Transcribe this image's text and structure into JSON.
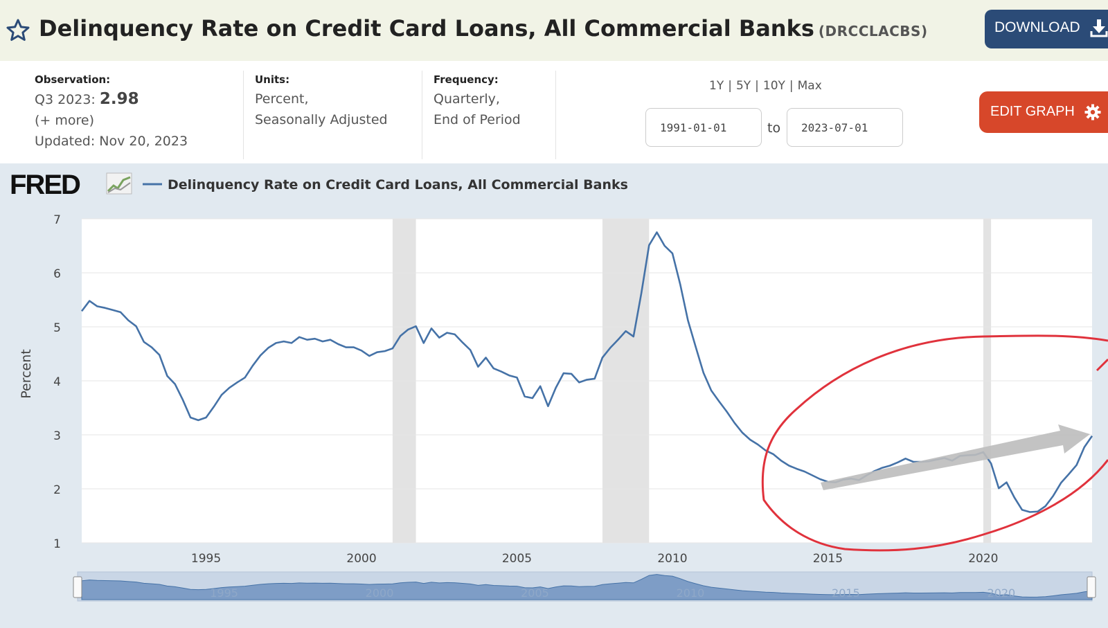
{
  "header": {
    "title": "Delinquency Rate on Credit Card Loans, All Commercial Banks",
    "series_id": "(DRCCLACBS)",
    "download_label": "DOWNLOAD",
    "star_icon": "star-outline-icon",
    "download_icon": "download-icon"
  },
  "meta": {
    "observation_label": "Observation:",
    "observation_period": "Q3 2023:",
    "observation_value": "2.98",
    "more_link": "(+ more)",
    "updated": "Updated: Nov 20, 2023",
    "units_label": "Units:",
    "units_line1": "Percent,",
    "units_line2": "Seasonally Adjusted",
    "frequency_label": "Frequency:",
    "frequency_line1": "Quarterly,",
    "frequency_line2": "End of Period"
  },
  "controls": {
    "ranges": [
      "1Y",
      "5Y",
      "10Y",
      "Max"
    ],
    "start_date": "1991-01-01",
    "end_date": "2023-07-01",
    "to_label": "to",
    "edit_label": "EDIT GRAPH",
    "edit_icon": "gear-icon"
  },
  "colors": {
    "line": "#4572a7",
    "recession": "#e3e3e3",
    "annotation_circle": "#e0323c",
    "annotation_arrow": "#bfbfbf",
    "download_bg": "#2b4b77",
    "edit_bg": "#d7472a"
  },
  "chart_data": {
    "type": "line",
    "logo": "FRED",
    "legend_label": "Delinquency Rate on Credit Card Loans, All Commercial Banks",
    "ylabel": "Percent",
    "ylim": [
      1,
      7
    ],
    "yticks": [
      "1",
      "2",
      "3",
      "4",
      "5",
      "6",
      "7"
    ],
    "xlim": [
      1991.0,
      2023.5
    ],
    "xticks": [
      "1995",
      "2000",
      "2005",
      "2010",
      "2015",
      "2020"
    ],
    "grid": true,
    "recessions": [
      [
        2001.0,
        2001.75
      ],
      [
        2007.75,
        2009.25
      ],
      [
        2020.0,
        2020.25
      ]
    ],
    "series": [
      {
        "values": [
          [
            1991.0,
            5.29
          ],
          [
            1991.25,
            5.48
          ],
          [
            1991.5,
            5.38
          ],
          [
            1991.75,
            5.35
          ],
          [
            1992.0,
            5.31
          ],
          [
            1992.25,
            5.27
          ],
          [
            1992.5,
            5.12
          ],
          [
            1992.75,
            5.01
          ],
          [
            1993.0,
            4.72
          ],
          [
            1993.25,
            4.62
          ],
          [
            1993.5,
            4.48
          ],
          [
            1993.75,
            4.09
          ],
          [
            1994.0,
            3.94
          ],
          [
            1994.25,
            3.65
          ],
          [
            1994.5,
            3.32
          ],
          [
            1994.75,
            3.27
          ],
          [
            1995.0,
            3.32
          ],
          [
            1995.25,
            3.52
          ],
          [
            1995.5,
            3.74
          ],
          [
            1995.75,
            3.87
          ],
          [
            1996.0,
            3.97
          ],
          [
            1996.25,
            4.06
          ],
          [
            1996.5,
            4.28
          ],
          [
            1996.75,
            4.47
          ],
          [
            1997.0,
            4.61
          ],
          [
            1997.25,
            4.7
          ],
          [
            1997.5,
            4.73
          ],
          [
            1997.75,
            4.7
          ],
          [
            1998.0,
            4.81
          ],
          [
            1998.25,
            4.76
          ],
          [
            1998.5,
            4.78
          ],
          [
            1998.75,
            4.73
          ],
          [
            1999.0,
            4.76
          ],
          [
            1999.25,
            4.68
          ],
          [
            1999.5,
            4.62
          ],
          [
            1999.75,
            4.62
          ],
          [
            2000.0,
            4.56
          ],
          [
            2000.25,
            4.46
          ],
          [
            2000.5,
            4.53
          ],
          [
            2000.75,
            4.55
          ],
          [
            2001.0,
            4.6
          ],
          [
            2001.25,
            4.83
          ],
          [
            2001.5,
            4.95
          ],
          [
            2001.75,
            5.01
          ],
          [
            2002.0,
            4.7
          ],
          [
            2002.25,
            4.97
          ],
          [
            2002.5,
            4.8
          ],
          [
            2002.75,
            4.89
          ],
          [
            2003.0,
            4.86
          ],
          [
            2003.25,
            4.71
          ],
          [
            2003.5,
            4.57
          ],
          [
            2003.75,
            4.26
          ],
          [
            2004.0,
            4.43
          ],
          [
            2004.25,
            4.23
          ],
          [
            2004.5,
            4.17
          ],
          [
            2004.75,
            4.1
          ],
          [
            2005.0,
            4.06
          ],
          [
            2005.25,
            3.71
          ],
          [
            2005.5,
            3.68
          ],
          [
            2005.75,
            3.9
          ],
          [
            2006.0,
            3.53
          ],
          [
            2006.25,
            3.87
          ],
          [
            2006.5,
            4.14
          ],
          [
            2006.75,
            4.13
          ],
          [
            2007.0,
            3.97
          ],
          [
            2007.25,
            4.02
          ],
          [
            2007.5,
            4.04
          ],
          [
            2007.75,
            4.43
          ],
          [
            2008.0,
            4.61
          ],
          [
            2008.25,
            4.76
          ],
          [
            2008.5,
            4.92
          ],
          [
            2008.75,
            4.82
          ],
          [
            2009.0,
            5.62
          ],
          [
            2009.25,
            6.51
          ],
          [
            2009.5,
            6.75
          ],
          [
            2009.75,
            6.5
          ],
          [
            2010.0,
            6.36
          ],
          [
            2010.25,
            5.79
          ],
          [
            2010.5,
            5.12
          ],
          [
            2010.75,
            4.63
          ],
          [
            2011.0,
            4.15
          ],
          [
            2011.25,
            3.82
          ],
          [
            2011.5,
            3.62
          ],
          [
            2011.75,
            3.43
          ],
          [
            2012.0,
            3.22
          ],
          [
            2012.25,
            3.04
          ],
          [
            2012.5,
            2.91
          ],
          [
            2012.75,
            2.82
          ],
          [
            2013.0,
            2.71
          ],
          [
            2013.25,
            2.64
          ],
          [
            2013.5,
            2.52
          ],
          [
            2013.75,
            2.43
          ],
          [
            2014.0,
            2.37
          ],
          [
            2014.25,
            2.32
          ],
          [
            2014.5,
            2.25
          ],
          [
            2014.75,
            2.18
          ],
          [
            2015.0,
            2.13
          ],
          [
            2015.25,
            2.12
          ],
          [
            2015.5,
            2.17
          ],
          [
            2015.75,
            2.19
          ],
          [
            2016.0,
            2.16
          ],
          [
            2016.25,
            2.25
          ],
          [
            2016.5,
            2.33
          ],
          [
            2016.75,
            2.39
          ],
          [
            2017.0,
            2.43
          ],
          [
            2017.25,
            2.49
          ],
          [
            2017.5,
            2.56
          ],
          [
            2017.75,
            2.5
          ],
          [
            2018.0,
            2.5
          ],
          [
            2018.25,
            2.51
          ],
          [
            2018.5,
            2.54
          ],
          [
            2018.75,
            2.57
          ],
          [
            2019.0,
            2.52
          ],
          [
            2019.25,
            2.61
          ],
          [
            2019.5,
            2.62
          ],
          [
            2019.75,
            2.63
          ],
          [
            2020.0,
            2.68
          ],
          [
            2020.25,
            2.47
          ],
          [
            2020.5,
            2.01
          ],
          [
            2020.75,
            2.12
          ],
          [
            2021.0,
            1.84
          ],
          [
            2021.25,
            1.61
          ],
          [
            2021.5,
            1.57
          ],
          [
            2021.75,
            1.58
          ],
          [
            2022.0,
            1.68
          ],
          [
            2022.25,
            1.87
          ],
          [
            2022.5,
            2.11
          ],
          [
            2022.75,
            2.27
          ],
          [
            2023.0,
            2.44
          ],
          [
            2023.25,
            2.77
          ],
          [
            2023.5,
            2.98
          ]
        ]
      }
    ]
  }
}
